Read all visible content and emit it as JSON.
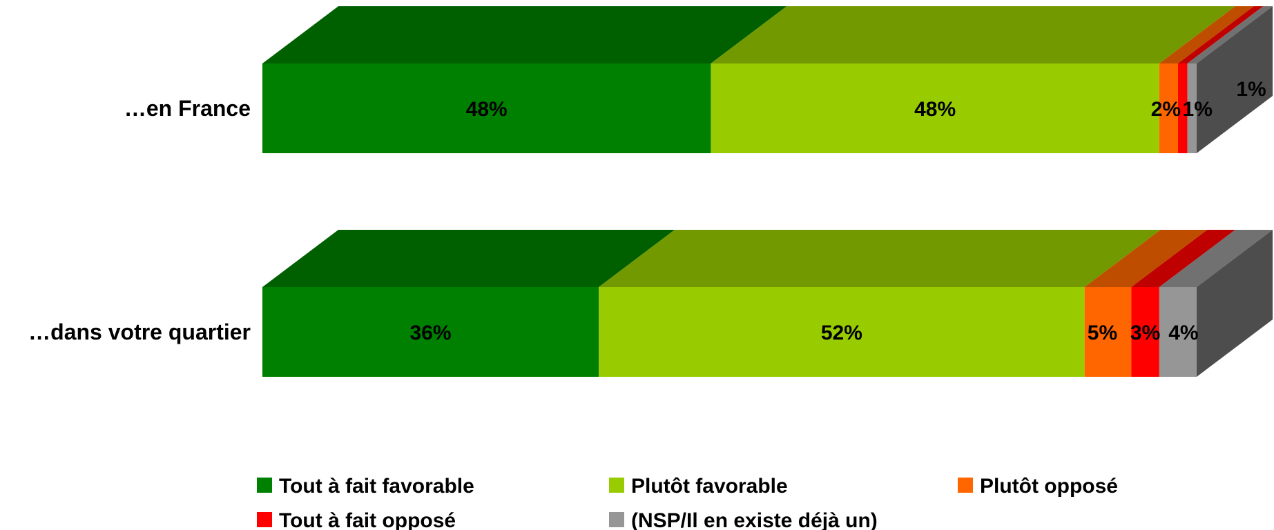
{
  "chart_data": {
    "type": "bar",
    "orientation": "horizontal",
    "stacked": true,
    "percent_stacked": true,
    "three_d": true,
    "categories": [
      "…en France",
      "…dans votre quartier"
    ],
    "series": [
      {
        "name": "Tout à fait favorable",
        "values": [
          48,
          36
        ],
        "labels": [
          "48%",
          "36%"
        ]
      },
      {
        "name": "Plutôt favorable",
        "values": [
          48,
          52
        ],
        "labels": [
          "48%",
          "52%"
        ]
      },
      {
        "name": "Plutôt opposé",
        "values": [
          2,
          5
        ],
        "labels": [
          "2%",
          "5%"
        ]
      },
      {
        "name": "Tout à fait opposé",
        "values": [
          1,
          3
        ],
        "labels": [
          "",
          "3%"
        ]
      },
      {
        "name": "(NSP/Il en existe déjà un)",
        "values": [
          1,
          4
        ],
        "labels": [
          "1%",
          "4%"
        ]
      }
    ],
    "extra_labels": [
      "1%"
    ],
    "colors": {
      "front": [
        "#008000",
        "#99CC00",
        "#FF6600",
        "#FF0000",
        "#969696"
      ],
      "top": [
        "#006000",
        "#739900",
        "#BF4D00",
        "#BF0000",
        "#717171"
      ],
      "side": "#4D4D4D"
    },
    "xlim": [
      0,
      100
    ],
    "legend_position": "bottom",
    "grid": false
  }
}
